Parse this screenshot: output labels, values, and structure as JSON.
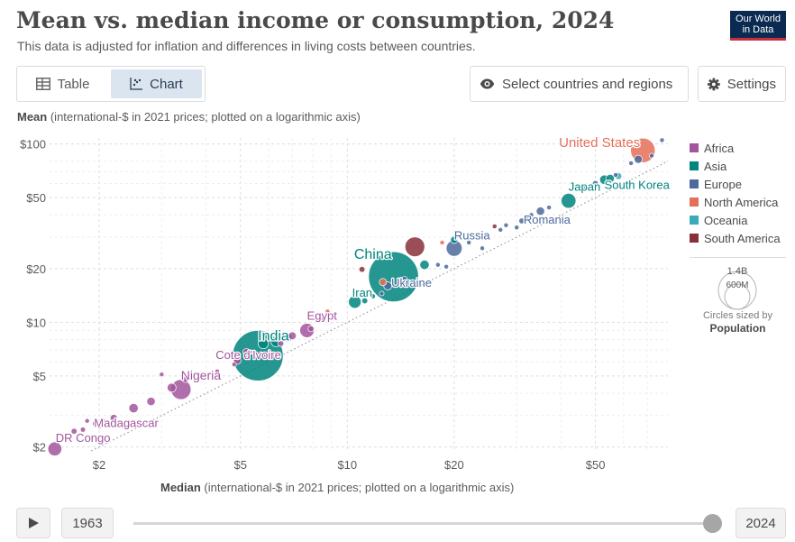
{
  "header": {
    "title": "Mean vs. median income or consumption, 2024",
    "subtitle": "This data is adjusted for inflation and differences in living costs between countries.",
    "logo_line1": "Our World",
    "logo_line2": "in Data"
  },
  "controls": {
    "tab_table": "Table",
    "tab_chart": "Chart",
    "active_tab": "Chart",
    "select_label": "Select countries and regions",
    "settings_label": "Settings"
  },
  "axes": {
    "y_bold": "Mean",
    "y_rest": " (international-$ in 2021 prices; plotted on a logarithmic axis)",
    "x_bold": "Median",
    "x_rest": " (international-$ in 2021 prices; plotted on a logarithmic axis)"
  },
  "size_legend": {
    "big": "1.4B",
    "small": "600M",
    "caption": "Circles sized by",
    "caption_bold": "Population"
  },
  "timeline": {
    "start_year": "1963",
    "end_year": "2024",
    "position": 1.0
  },
  "colors": {
    "Africa": "#a2559c",
    "Asia": "#00847e",
    "Europe": "#4c6a9c",
    "North America": "#e56e5a",
    "Oceania": "#38aaba",
    "South America": "#883039"
  },
  "chart_data": {
    "type": "scatter",
    "x_scale": "log",
    "y_scale": "log",
    "xlim": [
      1.45,
      80
    ],
    "ylim": [
      1.9,
      108
    ],
    "x_ticks": [
      {
        "v": 2,
        "label": "$2"
      },
      {
        "v": 5,
        "label": "$5"
      },
      {
        "v": 10,
        "label": "$10"
      },
      {
        "v": 20,
        "label": "$20"
      },
      {
        "v": 50,
        "label": "$50"
      }
    ],
    "y_ticks": [
      {
        "v": 2,
        "label": "$2"
      },
      {
        "v": 5,
        "label": "$5"
      },
      {
        "v": 10,
        "label": "$10"
      },
      {
        "v": 20,
        "label": "$20"
      },
      {
        "v": 50,
        "label": "$50"
      },
      {
        "v": 100,
        "label": "$100"
      }
    ],
    "grid": true,
    "reference_line": "y = x",
    "legend": [
      "Africa",
      "Asia",
      "Europe",
      "North America",
      "Oceania",
      "South America"
    ],
    "legend_position": "right",
    "points": [
      {
        "name": "DR Congo",
        "region": "Africa",
        "x": 1.5,
        "y": 1.95,
        "pop": 109,
        "label": "DR Congo"
      },
      {
        "name": "Madagascar",
        "region": "Africa",
        "x": 2.2,
        "y": 2.9,
        "pop": 31,
        "label": "Madagascar"
      },
      {
        "name": "Nigeria",
        "region": "Africa",
        "x": 3.4,
        "y": 4.2,
        "pop": 227,
        "label": "Nigeria"
      },
      {
        "name": "Cote d'Ivoire",
        "region": "Africa",
        "x": 4.9,
        "y": 6.1,
        "pop": 31,
        "label": "Cote d'Ivoire"
      },
      {
        "name": "India",
        "region": "Asia",
        "x": 5.6,
        "y": 6.5,
        "pop": 1440,
        "label": "India"
      },
      {
        "name": "Egypt",
        "region": "Africa",
        "x": 7.7,
        "y": 9.0,
        "pop": 116,
        "label": "Egypt"
      },
      {
        "name": "Iran",
        "region": "Asia",
        "x": 10.5,
        "y": 13.0,
        "pop": 90,
        "label": "Iran"
      },
      {
        "name": "China",
        "region": "Asia",
        "x": 13.5,
        "y": 18.0,
        "pop": 1410,
        "label": "China"
      },
      {
        "name": "Ukraine",
        "region": "Europe",
        "x": 13.0,
        "y": 16.0,
        "pop": 37,
        "label": "Ukraine"
      },
      {
        "name": "Russia",
        "region": "Europe",
        "x": 20.0,
        "y": 26.0,
        "pop": 144,
        "label": "Russia"
      },
      {
        "name": "Romania",
        "region": "Europe",
        "x": 31.0,
        "y": 37.0,
        "pop": 19,
        "label": "Romania"
      },
      {
        "name": "Japan",
        "region": "Asia",
        "x": 42.0,
        "y": 48.0,
        "pop": 124,
        "label": "Japan"
      },
      {
        "name": "South Korea",
        "region": "Asia",
        "x": 53.0,
        "y": 63.0,
        "pop": 52,
        "label": "South Korea"
      },
      {
        "name": "United States",
        "region": "North America",
        "x": 68.0,
        "y": 92.0,
        "pop": 340,
        "label": "United States"
      },
      {
        "region": "Africa",
        "x": 1.7,
        "y": 2.45,
        "pop": 20
      },
      {
        "region": "Africa",
        "x": 1.8,
        "y": 2.5,
        "pop": 15
      },
      {
        "region": "Africa",
        "x": 1.85,
        "y": 2.8,
        "pop": 12
      },
      {
        "region": "Africa",
        "x": 1.95,
        "y": 2.7,
        "pop": 18
      },
      {
        "region": "Africa",
        "x": 2.0,
        "y": 2.6,
        "pop": 10
      },
      {
        "region": "Africa",
        "x": 2.05,
        "y": 2.8,
        "pop": 8
      },
      {
        "region": "Africa",
        "x": 2.5,
        "y": 3.3,
        "pop": 50
      },
      {
        "region": "Africa",
        "x": 2.8,
        "y": 3.6,
        "pop": 40
      },
      {
        "region": "Africa",
        "x": 3.0,
        "y": 5.1,
        "pop": 10
      },
      {
        "region": "Africa",
        "x": 3.2,
        "y": 4.3,
        "pop": 45
      },
      {
        "region": "Africa",
        "x": 3.5,
        "y": 4.8,
        "pop": 25
      },
      {
        "region": "Africa",
        "x": 4.3,
        "y": 5.3,
        "pop": 8
      },
      {
        "region": "Africa",
        "x": 4.8,
        "y": 5.8,
        "pop": 12
      },
      {
        "region": "Africa",
        "x": 5.2,
        "y": 6.8,
        "pop": 30
      },
      {
        "region": "Asia",
        "x": 5.8,
        "y": 7.6,
        "pop": 60
      },
      {
        "region": "Asia",
        "x": 6.3,
        "y": 7.8,
        "pop": 60
      },
      {
        "region": "Asia",
        "x": 6.8,
        "y": 8.2,
        "pop": 40
      },
      {
        "region": "Africa",
        "x": 6.5,
        "y": 7.6,
        "pop": 20
      },
      {
        "region": "Africa",
        "x": 7.0,
        "y": 8.4,
        "pop": 35
      },
      {
        "region": "Africa",
        "x": 7.9,
        "y": 9.2,
        "pop": 20
      },
      {
        "region": "Africa",
        "x": 8.5,
        "y": 10.5,
        "pop": 5
      },
      {
        "region": "North America",
        "x": 8.8,
        "y": 11.5,
        "pop": 10
      },
      {
        "region": "Asia",
        "x": 11.2,
        "y": 13.2,
        "pop": 20
      },
      {
        "region": "Asia",
        "x": 11.8,
        "y": 14.0,
        "pop": 15
      },
      {
        "region": "Europe",
        "x": 12.5,
        "y": 14.5,
        "pop": 10
      },
      {
        "region": "North America",
        "x": 12.6,
        "y": 16.8,
        "pop": 30
      },
      {
        "region": "South America",
        "x": 11.0,
        "y": 19.8,
        "pop": 20
      },
      {
        "region": "South America",
        "x": 15.5,
        "y": 26.5,
        "pop": 220
      },
      {
        "region": "Asia",
        "x": 16.5,
        "y": 21.0,
        "pop": 50
      },
      {
        "region": "Europe",
        "x": 14.5,
        "y": 17.5,
        "pop": 15
      },
      {
        "region": "Europe",
        "x": 18.0,
        "y": 21.0,
        "pop": 10
      },
      {
        "region": "Europe",
        "x": 19.0,
        "y": 20.5,
        "pop": 8
      },
      {
        "region": "North America",
        "x": 18.5,
        "y": 28.0,
        "pop": 8
      },
      {
        "region": "Asia",
        "x": 20.0,
        "y": 29.0,
        "pop": 30
      },
      {
        "region": "Europe",
        "x": 22.0,
        "y": 28.0,
        "pop": 10
      },
      {
        "region": "Europe",
        "x": 24.0,
        "y": 26.0,
        "pop": 8
      },
      {
        "region": "South America",
        "x": 26.0,
        "y": 34.5,
        "pop": 10
      },
      {
        "region": "Europe",
        "x": 27.0,
        "y": 33.0,
        "pop": 9
      },
      {
        "region": "Europe",
        "x": 28.0,
        "y": 35.0,
        "pop": 10
      },
      {
        "region": "Europe",
        "x": 30.0,
        "y": 34.0,
        "pop": 8
      },
      {
        "region": "Europe",
        "x": 32.0,
        "y": 38.0,
        "pop": 9
      },
      {
        "region": "Europe",
        "x": 33.0,
        "y": 40.0,
        "pop": 6
      },
      {
        "region": "Europe",
        "x": 35.0,
        "y": 42.0,
        "pop": 40
      },
      {
        "region": "Europe",
        "x": 37.0,
        "y": 44.0,
        "pop": 10
      },
      {
        "region": "Europe",
        "x": 47.0,
        "y": 57.0,
        "pop": 20
      },
      {
        "region": "Europe",
        "x": 50.0,
        "y": 60.0,
        "pop": 20
      },
      {
        "region": "Asia",
        "x": 55.0,
        "y": 64.0,
        "pop": 40
      },
      {
        "region": "Europe",
        "x": 57.0,
        "y": 67.0,
        "pop": 10
      },
      {
        "region": "Oceania",
        "x": 58.0,
        "y": 66.0,
        "pop": 27
      },
      {
        "region": "Europe",
        "x": 63.0,
        "y": 78.0,
        "pop": 10
      },
      {
        "region": "Europe",
        "x": 66.0,
        "y": 82.0,
        "pop": 38
      },
      {
        "region": "Europe",
        "x": 72.0,
        "y": 86.0,
        "pop": 6
      },
      {
        "region": "Europe",
        "x": 77.0,
        "y": 105.0,
        "pop": 6
      }
    ]
  }
}
